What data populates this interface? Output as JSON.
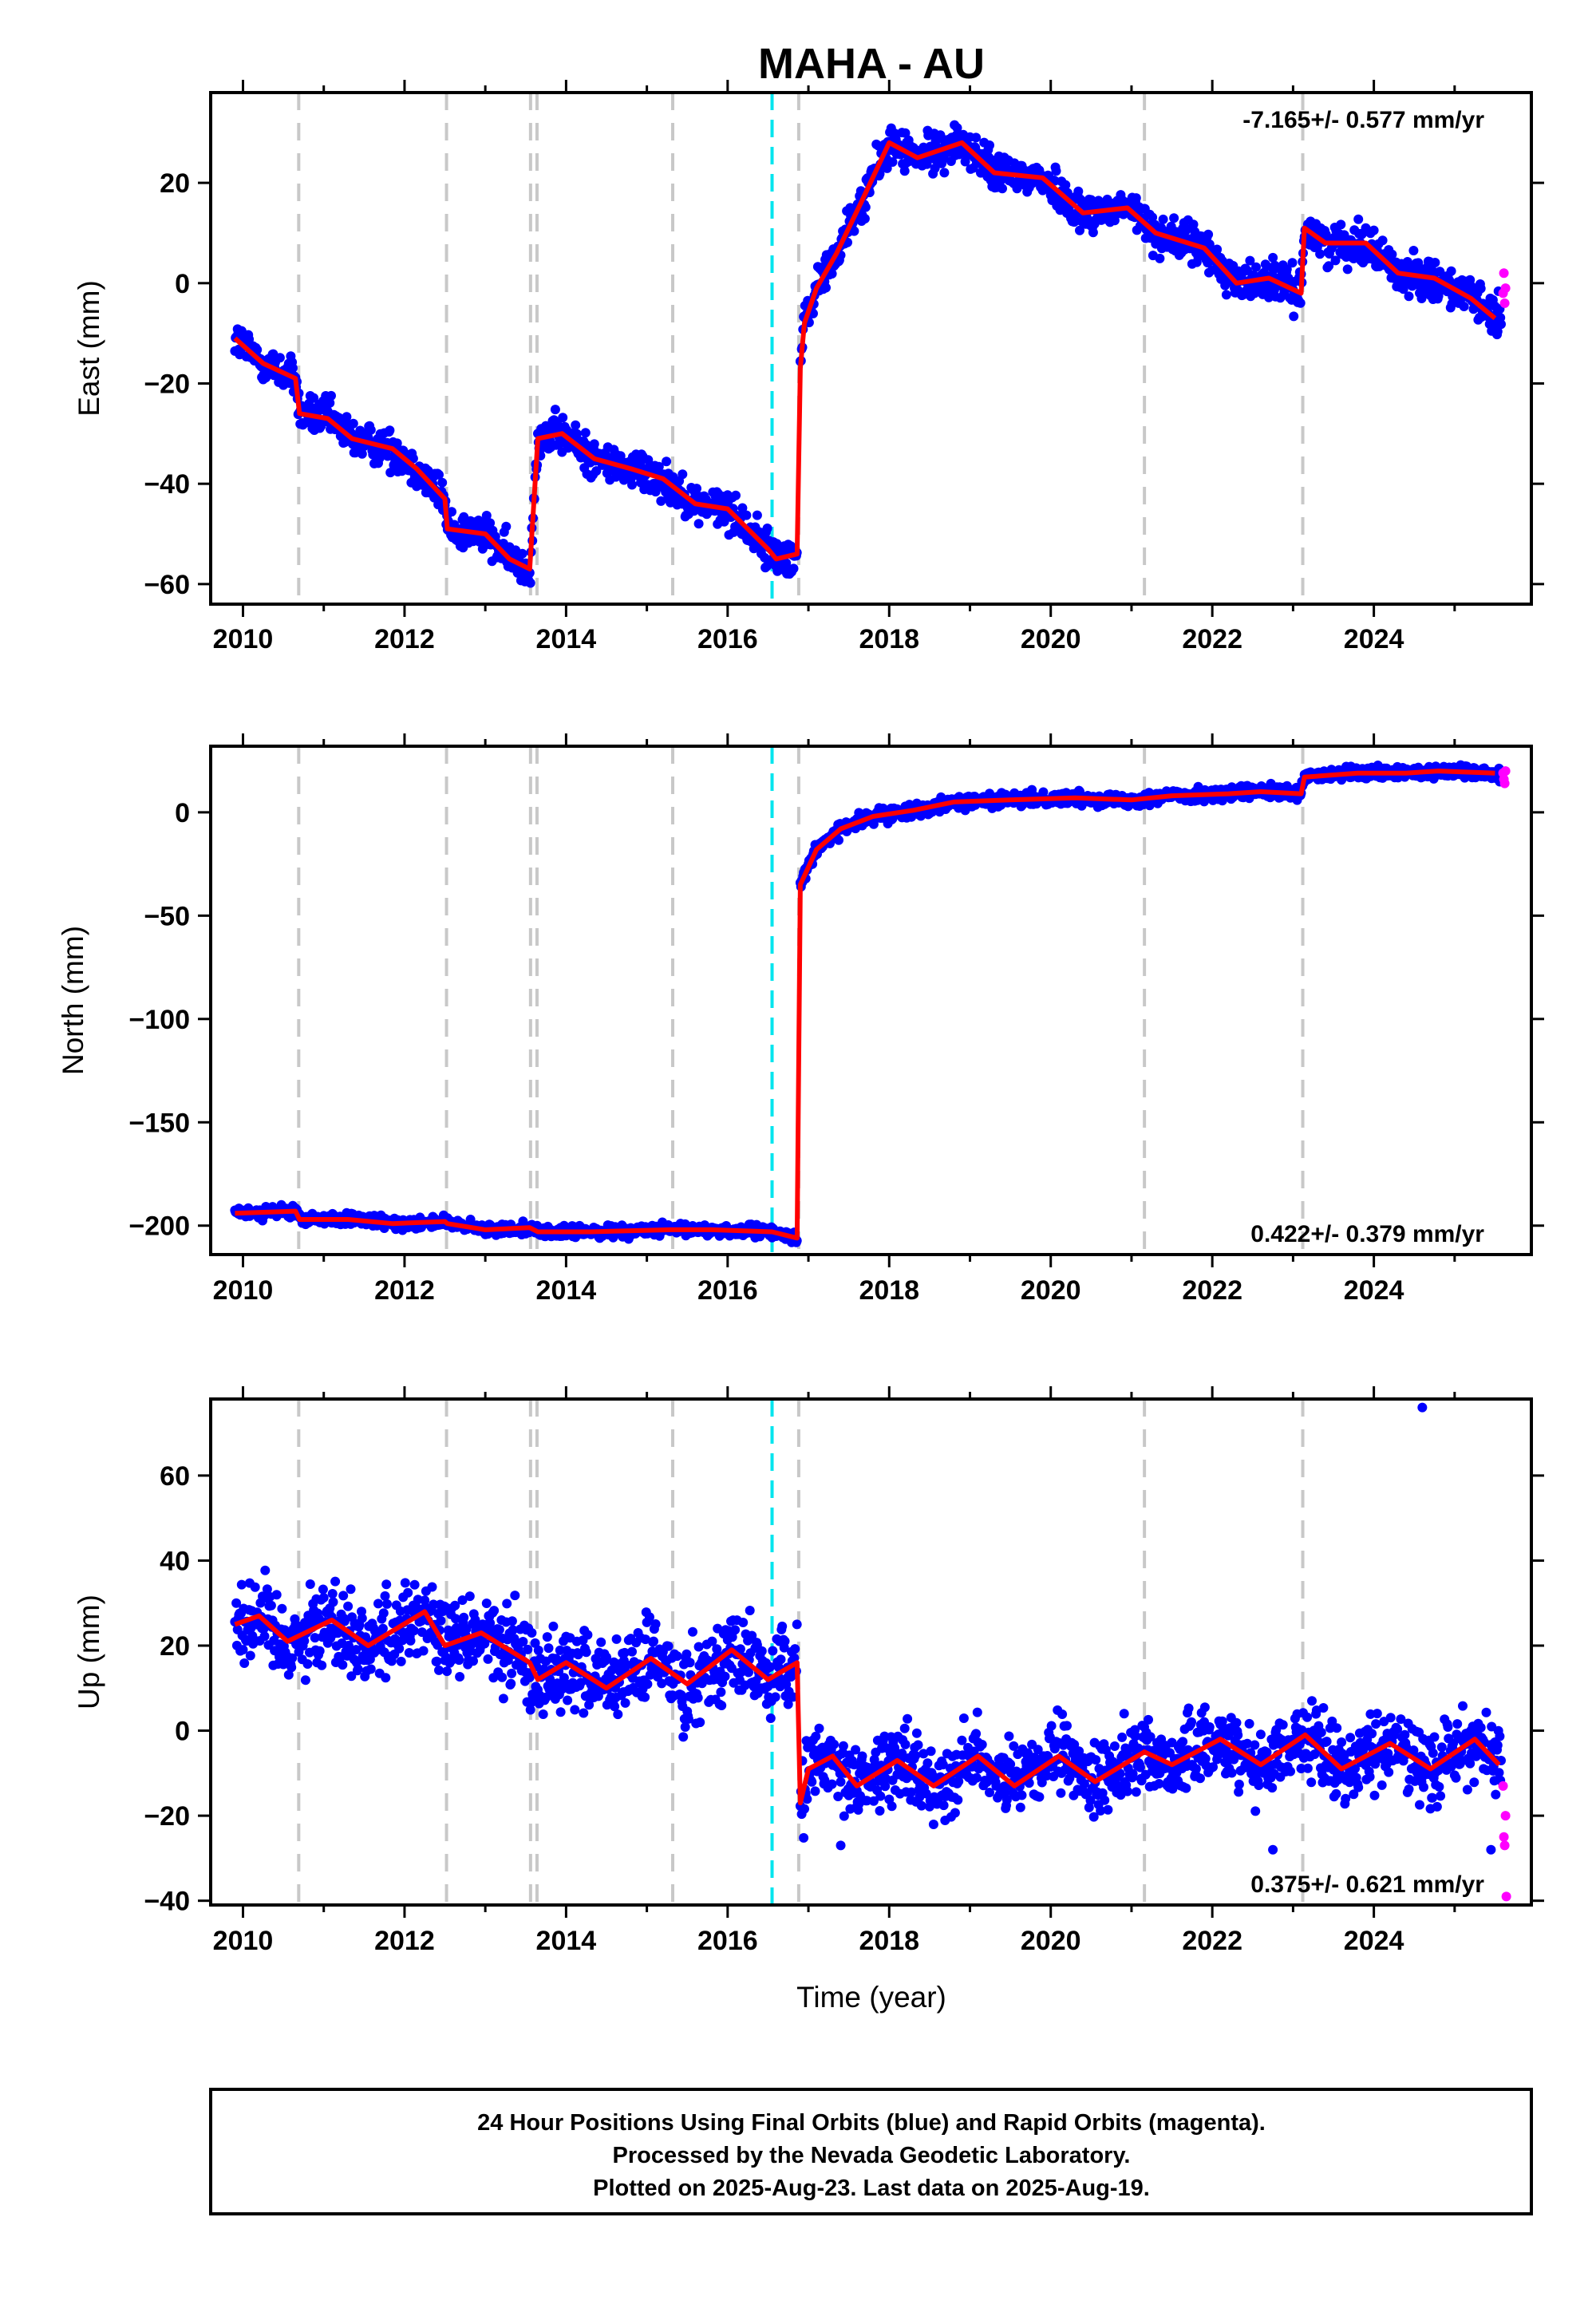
{
  "chart_data": {
    "type": "scatter",
    "title": "MAHA - AU",
    "xlabel": "Time (year)",
    "xlim": [
      2009.6,
      2025.95
    ],
    "x_ticks": [
      2010,
      2012,
      2014,
      2016,
      2018,
      2020,
      2022,
      2024
    ],
    "x_tick_labels": [
      "2010",
      "2012",
      "2014",
      "2016",
      "2018",
      "2020",
      "2022",
      "2024"
    ],
    "legend": {
      "final_orbits": "Final Orbits (blue)",
      "rapid_orbits": "Rapid Orbits (magenta)",
      "model": "model fit (red)"
    },
    "colors": {
      "final": "#0000ff",
      "rapid": "#ff00ff",
      "model": "#ff0000",
      "equipment_change": "#c8c8c8",
      "earthquake": "#00e5ee"
    },
    "equipment_changes": [
      2010.69,
      2012.52,
      2013.56,
      2013.64,
      2015.32,
      2016.88,
      2021.16,
      2023.12
    ],
    "earthquakes": [
      2016.55
    ],
    "panels": [
      {
        "ylabel": "East (mm)",
        "ylim": [
          -64,
          38
        ],
        "y_ticks": [
          -60,
          -40,
          -20,
          0,
          20
        ],
        "y_tick_labels": [
          "−60",
          "−40",
          "−20",
          "0",
          "20"
        ],
        "rate": "-7.165+/- 0.577 mm/yr",
        "model_points": [
          [
            2009.9,
            -11
          ],
          [
            2010.25,
            -16
          ],
          [
            2010.65,
            -19
          ],
          [
            2010.7,
            -26
          ],
          [
            2011.05,
            -27
          ],
          [
            2011.35,
            -31
          ],
          [
            2011.85,
            -33
          ],
          [
            2012.15,
            -37
          ],
          [
            2012.5,
            -43
          ],
          [
            2012.53,
            -49
          ],
          [
            2013.0,
            -50
          ],
          [
            2013.3,
            -55
          ],
          [
            2013.55,
            -57
          ],
          [
            2013.65,
            -31
          ],
          [
            2013.95,
            -30
          ],
          [
            2014.35,
            -35
          ],
          [
            2014.8,
            -37
          ],
          [
            2015.2,
            -39
          ],
          [
            2015.6,
            -44
          ],
          [
            2016.0,
            -45
          ],
          [
            2016.5,
            -53
          ],
          [
            2016.6,
            -55
          ],
          [
            2016.86,
            -54
          ],
          [
            2016.9,
            -17
          ],
          [
            2016.95,
            -8
          ],
          [
            2017.1,
            -1
          ],
          [
            2017.35,
            6
          ],
          [
            2017.65,
            16
          ],
          [
            2018.0,
            28
          ],
          [
            2018.35,
            25
          ],
          [
            2018.9,
            28
          ],
          [
            2019.3,
            22
          ],
          [
            2019.9,
            21
          ],
          [
            2020.4,
            14
          ],
          [
            2020.95,
            15
          ],
          [
            2021.3,
            10
          ],
          [
            2021.9,
            7
          ],
          [
            2022.3,
            0
          ],
          [
            2022.7,
            1
          ],
          [
            2023.1,
            -2
          ],
          [
            2023.14,
            11
          ],
          [
            2023.4,
            8
          ],
          [
            2023.9,
            8
          ],
          [
            2024.3,
            2
          ],
          [
            2024.75,
            1
          ],
          [
            2025.2,
            -3
          ],
          [
            2025.5,
            -7
          ]
        ],
        "rapid_points": [
          [
            2025.6,
            -2
          ],
          [
            2025.61,
            2
          ],
          [
            2025.62,
            -4
          ],
          [
            2025.63,
            -1
          ]
        ]
      },
      {
        "ylabel": "North (mm)",
        "ylim": [
          -214,
          32
        ],
        "y_ticks": [
          -200,
          -150,
          -100,
          -50,
          0
        ],
        "y_tick_labels": [
          "−200",
          "−150",
          "−100",
          "−50",
          "0"
        ],
        "rate": "0.422+/- 0.379 mm/yr",
        "model_points": [
          [
            2009.9,
            -194
          ],
          [
            2010.65,
            -193
          ],
          [
            2010.7,
            -197
          ],
          [
            2011.3,
            -197
          ],
          [
            2011.85,
            -199
          ],
          [
            2012.5,
            -198
          ],
          [
            2012.53,
            -199
          ],
          [
            2013.0,
            -202
          ],
          [
            2013.55,
            -201
          ],
          [
            2013.65,
            -203
          ],
          [
            2014.3,
            -203
          ],
          [
            2015.3,
            -202
          ],
          [
            2015.8,
            -202
          ],
          [
            2016.55,
            -203
          ],
          [
            2016.86,
            -206
          ],
          [
            2016.9,
            -35
          ],
          [
            2017.1,
            -18
          ],
          [
            2017.4,
            -8
          ],
          [
            2017.8,
            -2
          ],
          [
            2018.3,
            1
          ],
          [
            2018.8,
            5
          ],
          [
            2019.5,
            6
          ],
          [
            2020.3,
            7
          ],
          [
            2021.0,
            6
          ],
          [
            2021.5,
            8
          ],
          [
            2022.2,
            9
          ],
          [
            2022.6,
            10
          ],
          [
            2023.1,
            9
          ],
          [
            2023.14,
            17
          ],
          [
            2023.8,
            19
          ],
          [
            2024.4,
            19
          ],
          [
            2024.8,
            20
          ],
          [
            2025.5,
            19
          ]
        ],
        "rapid_points": [
          [
            2025.6,
            19
          ],
          [
            2025.61,
            16
          ],
          [
            2025.62,
            14
          ],
          [
            2025.63,
            20
          ]
        ]
      },
      {
        "ylabel": "Up (mm)",
        "ylim": [
          -41,
          78
        ],
        "y_ticks": [
          -40,
          -20,
          0,
          20,
          40,
          60
        ],
        "y_tick_labels": [
          "−40",
          "−20",
          "0",
          "20",
          "40",
          "60"
        ],
        "rate": "0.375+/- 0.621 mm/yr",
        "model_points": [
          [
            2009.9,
            25
          ],
          [
            2010.2,
            27
          ],
          [
            2010.55,
            21
          ],
          [
            2011.1,
            26
          ],
          [
            2011.55,
            20
          ],
          [
            2012.25,
            28
          ],
          [
            2012.5,
            20
          ],
          [
            2012.95,
            23
          ],
          [
            2013.55,
            16
          ],
          [
            2013.65,
            12
          ],
          [
            2014.0,
            16
          ],
          [
            2014.5,
            10
          ],
          [
            2015.05,
            17
          ],
          [
            2015.5,
            11
          ],
          [
            2016.05,
            19
          ],
          [
            2016.5,
            12
          ],
          [
            2016.86,
            16
          ],
          [
            2016.9,
            -17
          ],
          [
            2017.0,
            -9
          ],
          [
            2017.3,
            -6
          ],
          [
            2017.6,
            -13
          ],
          [
            2018.1,
            -7
          ],
          [
            2018.55,
            -13
          ],
          [
            2019.1,
            -6
          ],
          [
            2019.55,
            -13
          ],
          [
            2020.1,
            -6
          ],
          [
            2020.55,
            -12
          ],
          [
            2021.16,
            -5
          ],
          [
            2021.5,
            -8
          ],
          [
            2022.1,
            -2
          ],
          [
            2022.6,
            -8
          ],
          [
            2023.15,
            -1
          ],
          [
            2023.6,
            -9
          ],
          [
            2024.2,
            -3
          ],
          [
            2024.7,
            -9
          ],
          [
            2025.25,
            -2
          ],
          [
            2025.55,
            -8
          ]
        ],
        "rapid_points": [
          [
            2025.6,
            -13
          ],
          [
            2025.61,
            -25
          ],
          [
            2025.62,
            -27
          ],
          [
            2025.63,
            -20
          ],
          [
            2025.64,
            -39
          ]
        ]
      }
    ],
    "footer": [
      "24 Hour Positions Using Final Orbits (blue) and Rapid Orbits (magenta).",
      "Processed by the Nevada Geodetic Laboratory.",
      "Plotted on 2025-Aug-23. Last data on 2025-Aug-19."
    ]
  }
}
